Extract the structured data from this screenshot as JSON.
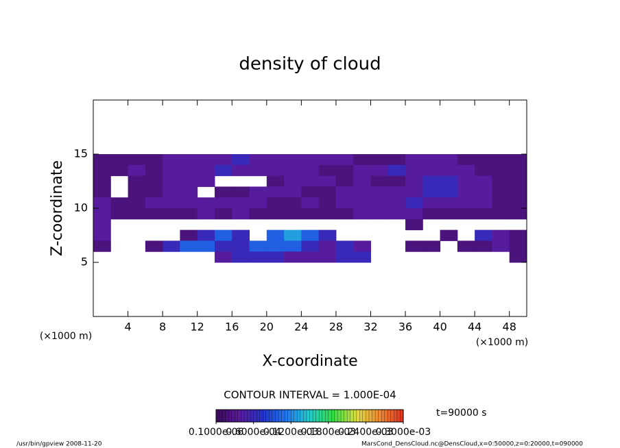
{
  "chart_data": {
    "type": "heatmap",
    "title": "density of cloud",
    "xlabel": "X-coordinate",
    "ylabel": "Z-coordinate",
    "xunit": "(×1000 m)",
    "contour_interval": "CONTOUR INTERVAL = 1.000E-04",
    "time_label": "t=90000 s",
    "footer_left": "/usr/bin/gpview   2008-11-20",
    "footer_right": "MarsCond_DensCloud.nc@DensCloud,x=0:50000,z=0:20000,t=090000",
    "xlim": [
      0,
      50
    ],
    "ylim": [
      0,
      20
    ],
    "xticks": [
      4,
      8,
      12,
      16,
      20,
      24,
      28,
      32,
      36,
      40,
      44,
      48
    ],
    "yticks": [
      5,
      10,
      15
    ],
    "x": [
      1,
      3,
      5,
      7,
      9,
      11,
      13,
      15,
      17,
      19,
      21,
      23,
      25,
      27,
      29,
      31,
      33,
      35,
      37,
      39,
      41,
      43,
      45,
      47,
      49
    ],
    "y": [
      14.5,
      13.5,
      12.5,
      11.5,
      10.5,
      9.5,
      8.5,
      7.5,
      6.5,
      5.5
    ],
    "z": [
      [
        2e-05,
        2e-05,
        2e-05,
        2e-05,
        4e-05,
        4e-05,
        4e-05,
        4e-05,
        6e-05,
        4e-05,
        4e-05,
        4e-05,
        4e-05,
        4e-05,
        4e-05,
        2e-05,
        2e-05,
        2e-05,
        4e-05,
        4e-05,
        4e-05,
        2e-05,
        2e-05,
        2e-05,
        2e-05
      ],
      [
        2e-05,
        2e-05,
        4e-05,
        2e-05,
        4e-05,
        4e-05,
        4e-05,
        6e-05,
        4e-05,
        4e-05,
        4e-05,
        4e-05,
        4e-05,
        2e-05,
        2e-05,
        4e-05,
        4e-05,
        6e-05,
        4e-05,
        4e-05,
        4e-05,
        4e-05,
        2e-05,
        2e-05,
        2e-05
      ],
      [
        2e-05,
        null,
        2e-05,
        2e-05,
        4e-05,
        4e-05,
        4e-05,
        null,
        null,
        null,
        2e-05,
        4e-05,
        4e-05,
        4e-05,
        2e-05,
        4e-05,
        2e-05,
        2e-05,
        4e-05,
        6e-05,
        6e-05,
        4e-05,
        4e-05,
        2e-05,
        2e-05
      ],
      [
        2e-05,
        null,
        2e-05,
        2e-05,
        4e-05,
        4e-05,
        null,
        2e-05,
        2e-05,
        4e-05,
        4e-05,
        4e-05,
        2e-05,
        2e-05,
        4e-05,
        4e-05,
        4e-05,
        4e-05,
        4e-05,
        6e-05,
        6e-05,
        4e-05,
        4e-05,
        2e-05,
        2e-05
      ],
      [
        4e-05,
        2e-05,
        2e-05,
        4e-05,
        4e-05,
        4e-05,
        4e-05,
        4e-05,
        4e-05,
        4e-05,
        2e-05,
        2e-05,
        4e-05,
        2e-05,
        4e-05,
        4e-05,
        4e-05,
        4e-05,
        6e-05,
        4e-05,
        4e-05,
        4e-05,
        4e-05,
        2e-05,
        2e-05
      ],
      [
        4e-05,
        2e-05,
        2e-05,
        2e-05,
        2e-05,
        2e-05,
        4e-05,
        2e-05,
        4e-05,
        2e-05,
        2e-05,
        2e-05,
        2e-05,
        2e-05,
        2e-05,
        4e-05,
        4e-05,
        4e-05,
        4e-05,
        2e-05,
        2e-05,
        2e-05,
        2e-05,
        2e-05,
        2e-05
      ],
      [
        4e-05,
        null,
        null,
        null,
        null,
        null,
        null,
        null,
        null,
        null,
        null,
        null,
        null,
        null,
        null,
        null,
        null,
        null,
        2e-05,
        null,
        null,
        null,
        null,
        null,
        null
      ],
      [
        4e-05,
        null,
        null,
        null,
        null,
        2e-05,
        6e-05,
        0.0001,
        6e-05,
        null,
        0.0001,
        0.00013,
        0.0001,
        6e-05,
        null,
        null,
        null,
        null,
        null,
        null,
        2e-05,
        null,
        6e-05,
        4e-05,
        2e-05
      ],
      [
        2e-05,
        null,
        null,
        2e-05,
        6e-05,
        0.0001,
        0.0001,
        6e-05,
        6e-05,
        0.0001,
        0.0001,
        0.0001,
        6e-05,
        4e-05,
        6e-05,
        4e-05,
        null,
        null,
        2e-05,
        2e-05,
        null,
        2e-05,
        2e-05,
        4e-05,
        2e-05
      ],
      [
        null,
        null,
        null,
        null,
        null,
        null,
        null,
        4e-05,
        6e-05,
        6e-05,
        6e-05,
        4e-05,
        4e-05,
        4e-05,
        6e-05,
        6e-05,
        null,
        null,
        null,
        null,
        null,
        null,
        null,
        null,
        2e-05
      ]
    ],
    "clim": [
      0,
      0.0003
    ],
    "colors": [
      "#3a0a5a",
      "#5a1a9a",
      "#2233cc",
      "#2277ee",
      "#22cccc",
      "#33dd44",
      "#dddd44",
      "#ee8833",
      "#dd3322"
    ],
    "colorbar_ticks": [
      {
        "value": 1e-07,
        "label": "0.1000e-06"
      },
      {
        "value": 6e-05,
        "label": "0.6000e-04"
      },
      {
        "value": 0.00012,
        "label": "0.1200e-03"
      },
      {
        "value": 0.00018,
        "label": "0.1800e-03"
      },
      {
        "value": 0.00024,
        "label": "0.2400e-03"
      },
      {
        "value": 0.0003,
        "label": "0.3000e-03"
      }
    ]
  }
}
